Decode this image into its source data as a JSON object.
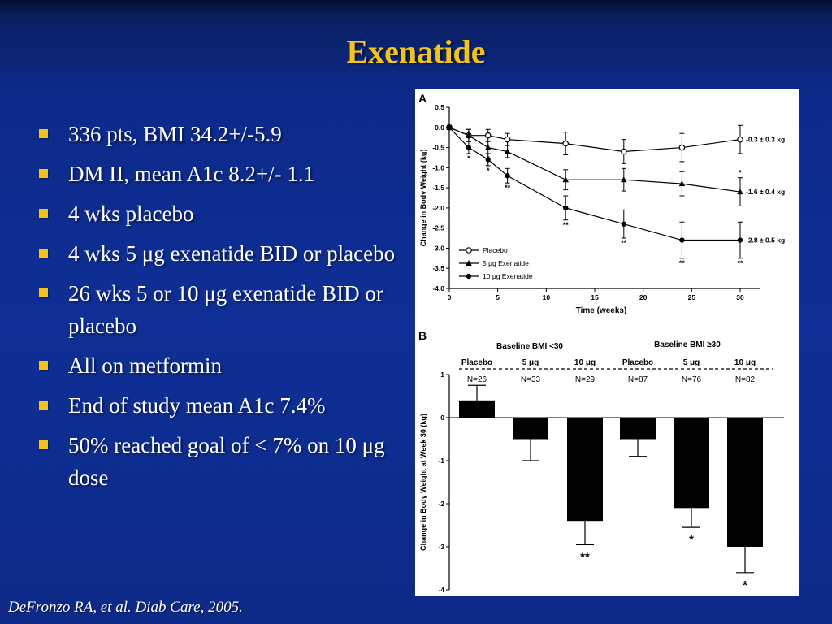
{
  "slide": {
    "title": "Exenatide",
    "citation": "DeFronzo RA, et al.  Diab Care, 2005."
  },
  "bullets": [
    "336 pts, BMI 34.2+/-5.9",
    "DM II,  mean A1c 8.2+/- 1.1",
    "4 wks placebo",
    "4 wks 5 μg exenatide BID or placebo",
    "26 wks 5 or 10 μg exenatide BID or placebo",
    "All on metformin",
    "End of study mean A1c 7.4%",
    "50% reached goal of < 7% on 10 μg dose"
  ],
  "colors": {
    "title": "#f2c318",
    "bullet_marker": "#f2c318",
    "text": "#ffffff",
    "background": "#0d2a8a",
    "chart_ink": "#000000"
  },
  "chart_data": [
    {
      "type": "line",
      "panel_label": "A",
      "xlabel": "Time (weeks)",
      "ylabel": "Change in Body Weight (kg)",
      "xlim": [
        0,
        30
      ],
      "ylim": [
        -4.0,
        0.5
      ],
      "x_ticks": [
        0,
        5,
        10,
        15,
        20,
        25,
        30
      ],
      "y_ticks": [
        0.5,
        0.0,
        -0.5,
        -1.0,
        -1.5,
        -2.0,
        -2.5,
        -3.0,
        -3.5,
        -4.0
      ],
      "y_tick_labels": [
        "0.5",
        "0.0",
        "-0.5",
        "-1.0",
        "-1.5",
        "-2.0",
        "-2.5",
        "-3.0",
        "-3.5",
        "-4.0"
      ],
      "grid": false,
      "legend_position": "bottom-left",
      "x": [
        0,
        2,
        4,
        6,
        12,
        18,
        24,
        30
      ],
      "series": [
        {
          "name": "Placebo",
          "marker": "open-circle",
          "values": [
            0.0,
            -0.2,
            -0.2,
            -0.3,
            -0.4,
            -0.6,
            -0.5,
            -0.3
          ],
          "errors": [
            0.05,
            0.15,
            0.15,
            0.15,
            0.28,
            0.3,
            0.35,
            0.35
          ],
          "annotations": [
            "",
            "",
            "",
            "",
            "",
            "",
            "",
            ""
          ],
          "end_label": "-0.3 ± 0.3 kg"
        },
        {
          "name": "5 μg Exenatide",
          "marker": "filled-triangle",
          "values": [
            0.0,
            -0.2,
            -0.5,
            -0.6,
            -1.3,
            -1.3,
            -1.4,
            -1.6
          ],
          "errors": [
            0.05,
            0.15,
            0.15,
            0.15,
            0.25,
            0.28,
            0.3,
            0.35
          ],
          "annotations": [
            "",
            "",
            "*",
            "",
            "",
            "",
            "",
            "*"
          ],
          "end_label": "-1.6 ± 0.4 kg"
        },
        {
          "name": "10 μg Exenatide",
          "marker": "filled-circle",
          "values": [
            0.0,
            -0.5,
            -0.8,
            -1.2,
            -2.0,
            -2.4,
            -2.8,
            -2.8
          ],
          "errors": [
            0.05,
            0.15,
            0.15,
            0.18,
            0.3,
            0.35,
            0.45,
            0.45
          ],
          "annotations": [
            "",
            "*",
            "*",
            "**",
            "**",
            "**",
            "**",
            "**"
          ],
          "end_label": "-2.8 ± 0.5 kg"
        }
      ]
    },
    {
      "type": "bar",
      "panel_label": "B",
      "ylabel": "Change in Body Weight at Week 30 (kg)",
      "ylim": [
        -4,
        1
      ],
      "y_ticks": [
        1,
        0,
        -1,
        -2,
        -3,
        -4
      ],
      "grid": false,
      "groups": [
        "Baseline BMI <30",
        "Baseline BMI ≥30"
      ],
      "categories": [
        "Placebo",
        "5 μg",
        "10 μg",
        "Placebo",
        "5 μg",
        "10 μg"
      ],
      "n_labels": [
        "N=26",
        "N=33",
        "N=29",
        "N=87",
        "N=76",
        "N=82"
      ],
      "values": [
        0.4,
        -0.5,
        -2.4,
        -0.5,
        -2.1,
        -3.0
      ],
      "errors": [
        0.35,
        0.5,
        0.55,
        0.4,
        0.45,
        0.6
      ],
      "annotations": [
        "",
        "",
        "**",
        "",
        "*",
        "*"
      ]
    }
  ]
}
